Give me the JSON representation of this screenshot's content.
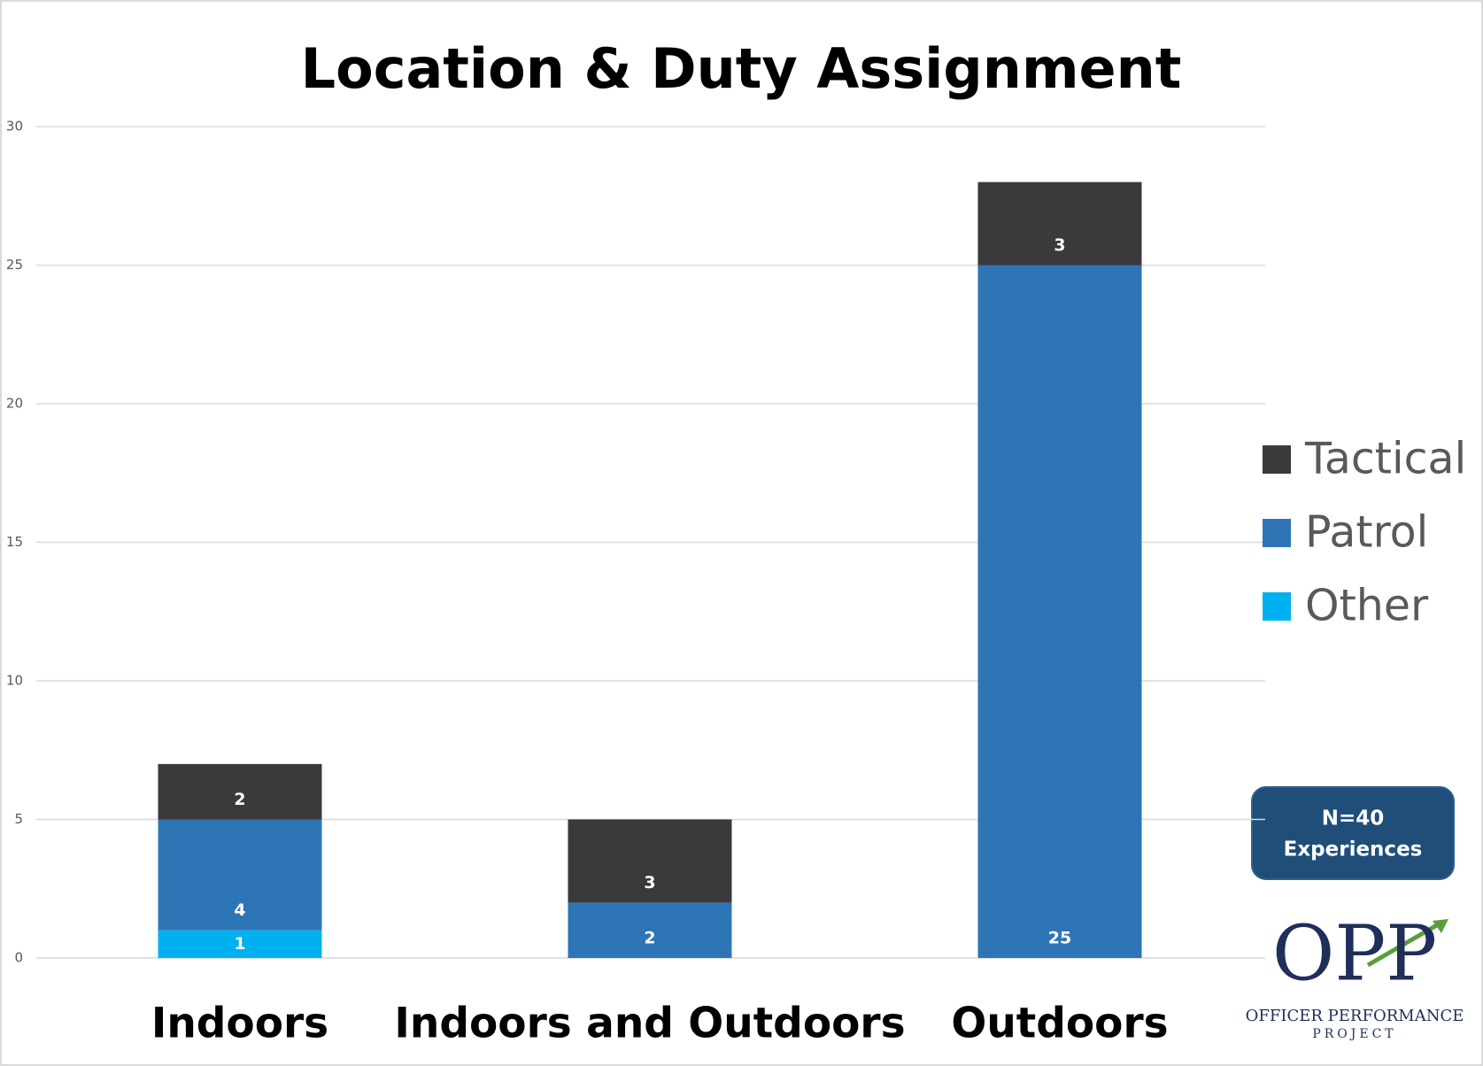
{
  "chart_data": {
    "type": "stacked_bar",
    "title": "Location & Duty Assignment",
    "categories": [
      "Indoors",
      "Indoors and Outdoors",
      "Outdoors"
    ],
    "series": [
      {
        "name": "Other",
        "color": "#00b0f0",
        "values": [
          1,
          null,
          null
        ]
      },
      {
        "name": "Patrol",
        "color": "#2e75b6",
        "values": [
          4,
          2,
          25
        ]
      },
      {
        "name": "Tactical",
        "color": "#3a3a3a",
        "values": [
          2,
          3,
          3
        ]
      }
    ],
    "ylim": [
      0,
      30
    ],
    "yticks": [
      0,
      5,
      10,
      15,
      20,
      25,
      30
    ],
    "grid": true,
    "legend": "right",
    "annotation": [
      "N=40",
      "Experiences"
    ],
    "logo": {
      "mark": "OPP",
      "name": "OFFICER PERFORMANCE",
      "sub": "PROJECT"
    }
  }
}
